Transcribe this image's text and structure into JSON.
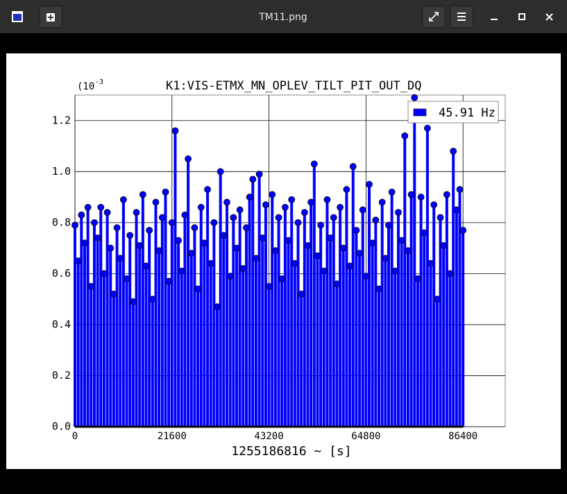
{
  "window": {
    "title": "TM11.png"
  },
  "chart_data": {
    "type": "stem",
    "title": "K1:VIS-ETMX_MN_OPLEV_TILT_PIT_OUT_DQ",
    "xlabel": "1255186816 ~ [s]",
    "y_multiplier": {
      "base": "(10",
      "exponent": "-3"
    },
    "xlim": [
      0,
      95800
    ],
    "ylim": [
      0,
      1.3
    ],
    "xticks": [
      0,
      21600,
      43200,
      64800,
      86400
    ],
    "yticks": [
      {
        "value": 0,
        "label": "0.0"
      },
      0.2,
      0.4,
      0.6,
      0.8,
      {
        "value": 1,
        "label": "1.0"
      },
      1.2
    ],
    "grid": true,
    "legend": "upper right",
    "series": [
      {
        "name": "45.91 Hz",
        "color": "#0000ff",
        "x": [
          0,
          720,
          1440,
          2160,
          2880,
          3600,
          4320,
          5040,
          5760,
          6480,
          7200,
          7920,
          8640,
          9360,
          10080,
          10800,
          11520,
          12240,
          12960,
          13680,
          14400,
          15120,
          15840,
          16560,
          17280,
          18000,
          18720,
          19440,
          20160,
          20880,
          21600,
          22320,
          23040,
          23760,
          24480,
          25200,
          25920,
          26640,
          27360,
          28080,
          28800,
          29520,
          30240,
          30960,
          31680,
          32400,
          33120,
          33840,
          34560,
          35280,
          36000,
          36720,
          37440,
          38160,
          38880,
          39600,
          40320,
          41040,
          41760,
          42480,
          43200,
          43920,
          44640,
          45360,
          46080,
          46800,
          47520,
          48240,
          48960,
          49680,
          50400,
          51120,
          51840,
          52560,
          53280,
          54000,
          54720,
          55440,
          56160,
          56880,
          57600,
          58320,
          59040,
          59760,
          60480,
          61200,
          61920,
          62640,
          63360,
          64080,
          64800,
          65520,
          66240,
          66960,
          67680,
          68400,
          69120,
          69840,
          70560,
          71280,
          72000,
          72720,
          73440,
          74160,
          74880,
          75600,
          76320,
          77040,
          77760,
          78480,
          79200,
          79920,
          80640,
          81360,
          82080,
          82800,
          83520,
          84240,
          84960,
          85680,
          86400
        ],
        "values": [
          0.79,
          0.65,
          0.83,
          0.72,
          0.86,
          0.55,
          0.8,
          0.74,
          0.86,
          0.6,
          0.84,
          0.7,
          0.52,
          0.78,
          0.66,
          0.89,
          0.58,
          0.75,
          0.49,
          0.84,
          0.71,
          0.91,
          0.63,
          0.77,
          0.5,
          0.88,
          0.69,
          0.82,
          0.92,
          0.57,
          0.8,
          1.16,
          0.73,
          0.61,
          0.83,
          1.05,
          0.68,
          0.78,
          0.54,
          0.86,
          0.72,
          0.93,
          0.64,
          0.8,
          0.47,
          1.0,
          0.75,
          0.88,
          0.59,
          0.82,
          0.7,
          0.85,
          0.62,
          0.78,
          0.9,
          0.97,
          0.66,
          0.99,
          0.74,
          0.87,
          0.55,
          0.91,
          0.69,
          0.82,
          0.58,
          0.86,
          0.73,
          0.89,
          0.64,
          0.8,
          0.52,
          0.84,
          0.71,
          0.88,
          1.03,
          0.67,
          0.79,
          0.61,
          0.89,
          0.74,
          0.82,
          0.56,
          0.86,
          0.7,
          0.93,
          0.63,
          1.02,
          0.77,
          0.68,
          0.85,
          0.59,
          0.95,
          0.72,
          0.81,
          0.54,
          0.88,
          0.66,
          0.79,
          0.92,
          0.61,
          0.84,
          0.73,
          1.14,
          0.69,
          0.91,
          1.29,
          0.58,
          0.9,
          0.76,
          1.17,
          0.64,
          0.87,
          0.5,
          0.82,
          0.71,
          0.91,
          0.6,
          1.08,
          0.85,
          0.93,
          0.77
        ]
      }
    ]
  }
}
